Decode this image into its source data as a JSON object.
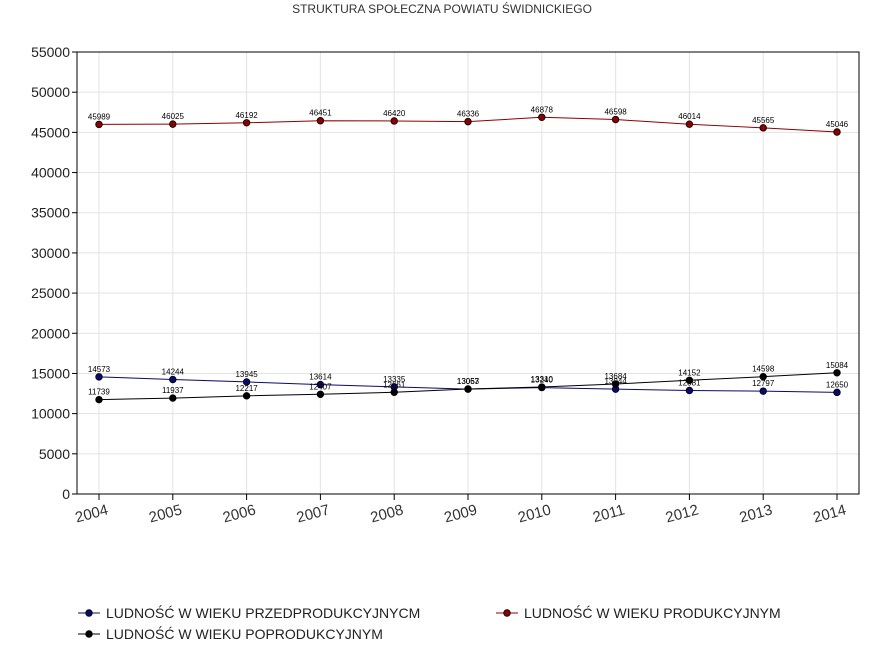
{
  "chart_data": {
    "type": "line",
    "title": "STRUKTURA SPOŁECZNA POWIATU ŚWIDNICKIEGO",
    "categories": [
      "2004",
      "2005",
      "2006",
      "2007",
      "2008",
      "2009",
      "2010",
      "2011",
      "2012",
      "2013",
      "2014"
    ],
    "ylim": [
      0,
      55000
    ],
    "yticks": [
      "0",
      "5000",
      "10000",
      "15000",
      "20000",
      "25000",
      "30000",
      "35000",
      "40000",
      "45000",
      "50000",
      "55000"
    ],
    "grid": true,
    "legend_position": "bottom",
    "series": [
      {
        "name": "LUDNOŚĆ W WIEKU PRZEDPRODUKCYJNYCM",
        "color": "#0a0a6e",
        "values": [
          14573,
          14244,
          13945,
          13614,
          13335,
          13053,
          13240,
          13044,
          12881,
          12797,
          12650
        ]
      },
      {
        "name": "LUDNOŚĆ W WIEKU PRODUKCYJNYM",
        "color": "#8b0000",
        "values": [
          45989,
          46025,
          46192,
          46451,
          46420,
          46336,
          46878,
          46598,
          46014,
          45565,
          45046
        ]
      },
      {
        "name": "LUDNOŚĆ W WIEKU POPRODUKCYJNYM",
        "color": "#000000",
        "values": [
          11739,
          11937,
          12217,
          12407,
          12661,
          13067,
          13310,
          13684,
          14152,
          14598,
          15084
        ]
      }
    ]
  }
}
